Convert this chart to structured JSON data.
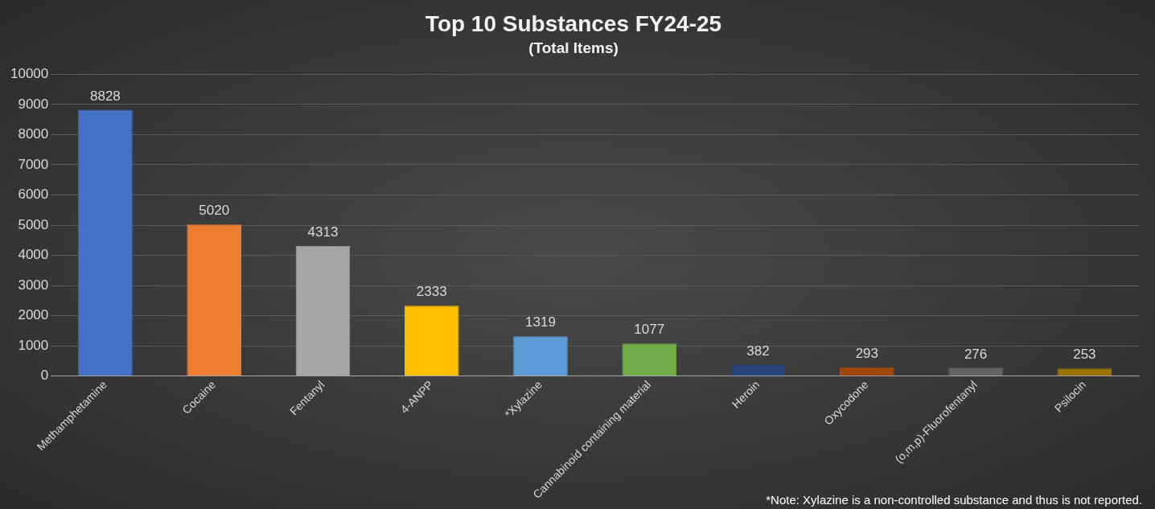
{
  "chart_data": {
    "type": "bar",
    "title": "Top 10 Substances FY24-25",
    "subtitle": "(Total Items)",
    "categories": [
      "Methamphetamine",
      "Cocaine",
      "Fentanyl",
      "4-ANPP",
      "*Xylazine",
      "Cannabinoid containing material",
      "Heroin",
      "Oxycodone",
      "(o,m,p)-Fluorofentanyl",
      "Psilocin"
    ],
    "values": [
      8828,
      5020,
      4313,
      2333,
      1319,
      1077,
      382,
      293,
      276,
      253
    ],
    "colors": [
      "#4472c4",
      "#ed7d31",
      "#a5a5a5",
      "#ffc000",
      "#5b9bd5",
      "#70ad47",
      "#264478",
      "#9e480e",
      "#636363",
      "#997300"
    ],
    "ylim": [
      0,
      10000
    ],
    "yticks": [
      0,
      1000,
      2000,
      3000,
      4000,
      5000,
      6000,
      7000,
      8000,
      9000,
      10000
    ],
    "grid": "y",
    "legend": false,
    "data_labels": true,
    "annotations": [
      "*Note: Xylazine is a non-controlled substance and thus is not reported."
    ]
  }
}
